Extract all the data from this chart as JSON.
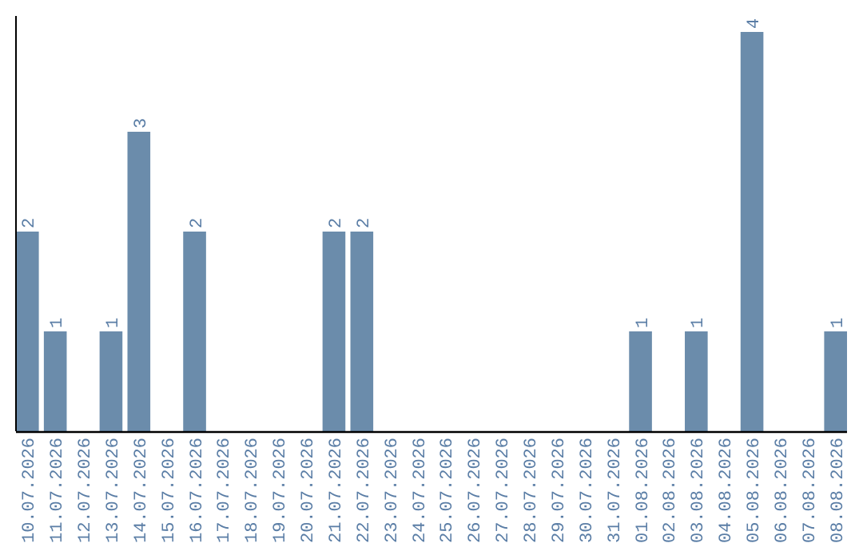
{
  "chart_data": {
    "type": "bar",
    "categories": [
      "10.07.2026",
      "11.07.2026",
      "12.07.2026",
      "13.07.2026",
      "14.07.2026",
      "15.07.2026",
      "16.07.2026",
      "17.07.2026",
      "18.07.2026",
      "19.07.2026",
      "20.07.2026",
      "21.07.2026",
      "22.07.2026",
      "23.07.2026",
      "24.07.2026",
      "25.07.2026",
      "26.07.2026",
      "27.07.2026",
      "28.07.2026",
      "29.07.2026",
      "30.07.2026",
      "31.07.2026",
      "01.08.2026",
      "02.08.2026",
      "03.08.2026",
      "04.08.2026",
      "05.08.2026",
      "06.08.2026",
      "07.08.2026",
      "08.08.2026"
    ],
    "values": [
      2,
      1,
      0,
      1,
      3,
      0,
      2,
      0,
      0,
      0,
      0,
      2,
      2,
      0,
      0,
      0,
      0,
      0,
      0,
      0,
      0,
      0,
      1,
      0,
      1,
      0,
      4,
      0,
      0,
      1
    ],
    "value_labels": [
      "2",
      "1",
      null,
      "1",
      "3",
      null,
      "2",
      null,
      null,
      null,
      null,
      "2",
      "2",
      null,
      null,
      null,
      null,
      null,
      null,
      null,
      null,
      null,
      "1",
      null,
      "1",
      null,
      "4",
      null,
      null,
      "1"
    ],
    "color": "#6b8cab"
  }
}
